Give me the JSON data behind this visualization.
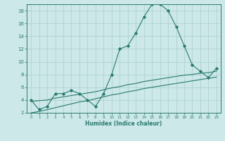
{
  "x": [
    0,
    1,
    2,
    3,
    4,
    5,
    6,
    7,
    8,
    9,
    10,
    11,
    12,
    13,
    14,
    15,
    16,
    17,
    18,
    19,
    20,
    21,
    22,
    23
  ],
  "y_main": [
    4.0,
    2.5,
    3.0,
    5.0,
    5.0,
    5.5,
    5.0,
    4.0,
    3.0,
    5.0,
    8.0,
    12.0,
    12.5,
    14.5,
    17.0,
    19.0,
    19.0,
    18.0,
    15.5,
    12.5,
    9.5,
    8.5,
    7.5,
    9.0
  ],
  "y_line2": [
    3.8,
    3.9,
    4.0,
    4.3,
    4.5,
    4.7,
    4.9,
    5.1,
    5.3,
    5.6,
    5.9,
    6.1,
    6.4,
    6.6,
    6.9,
    7.1,
    7.3,
    7.5,
    7.7,
    7.9,
    8.0,
    8.2,
    8.3,
    8.5
  ],
  "y_line3": [
    2.0,
    2.2,
    2.5,
    2.8,
    3.1,
    3.4,
    3.7,
    3.9,
    4.2,
    4.5,
    4.8,
    5.0,
    5.3,
    5.5,
    5.8,
    6.0,
    6.2,
    6.4,
    6.6,
    6.8,
    7.0,
    7.2,
    7.4,
    7.6
  ],
  "line_color": "#2a7a6f",
  "bg_color": "#cce8e8",
  "grid_color": "#aacece",
  "xlabel": "Humidex (Indice chaleur)",
  "ylim": [
    2,
    19
  ],
  "xlim": [
    -0.5,
    23.5
  ],
  "yticks": [
    2,
    4,
    6,
    8,
    10,
    12,
    14,
    16,
    18
  ],
  "xticks": [
    0,
    1,
    2,
    3,
    4,
    5,
    6,
    7,
    8,
    9,
    10,
    11,
    12,
    13,
    14,
    15,
    16,
    17,
    18,
    19,
    20,
    21,
    22,
    23
  ]
}
